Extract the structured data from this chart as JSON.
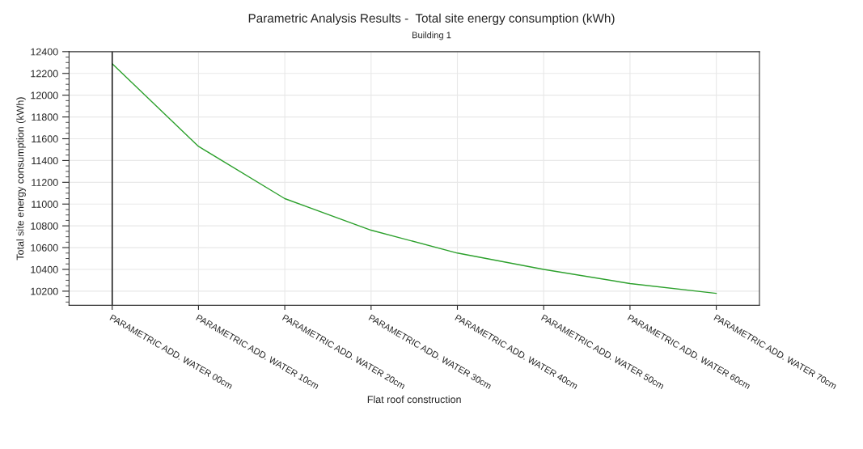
{
  "chart_data": {
    "type": "line",
    "title": "Parametric Analysis Results -  Total site energy consumption (kWh)",
    "subtitle": "Building 1",
    "xlabel": "Flat roof construction",
    "ylabel": "Total site energy consumption (kWh)",
    "categories": [
      "PARAMETRIC ADD. WATER 00cm",
      "PARAMETRIC ADD. WATER 10cm",
      "PARAMETRIC ADD. WATER 20cm",
      "PARAMETRIC ADD. WATER 30cm",
      "PARAMETRIC ADD. WATER 40cm",
      "PARAMETRIC ADD. WATER 50cm",
      "PARAMETRIC ADD. WATER 60cm",
      "PARAMETRIC ADD. WATER 70cm"
    ],
    "series": [
      {
        "color": "#2ca02c",
        "values": [
          12290,
          11530,
          11050,
          10760,
          10550,
          10400,
          10270,
          10180
        ]
      }
    ],
    "ylim": [
      10070,
      12400
    ],
    "yticks": [
      10200,
      10400,
      10600,
      10800,
      11000,
      11200,
      11400,
      11600,
      11800,
      12000,
      12200,
      12400
    ],
    "ref_lines": [
      {
        "axis": "x",
        "value": "PARAMETRIC ADD. WATER 00cm",
        "color": "#000000"
      }
    ],
    "grid": true,
    "marker": "none",
    "line_style": "solid"
  }
}
